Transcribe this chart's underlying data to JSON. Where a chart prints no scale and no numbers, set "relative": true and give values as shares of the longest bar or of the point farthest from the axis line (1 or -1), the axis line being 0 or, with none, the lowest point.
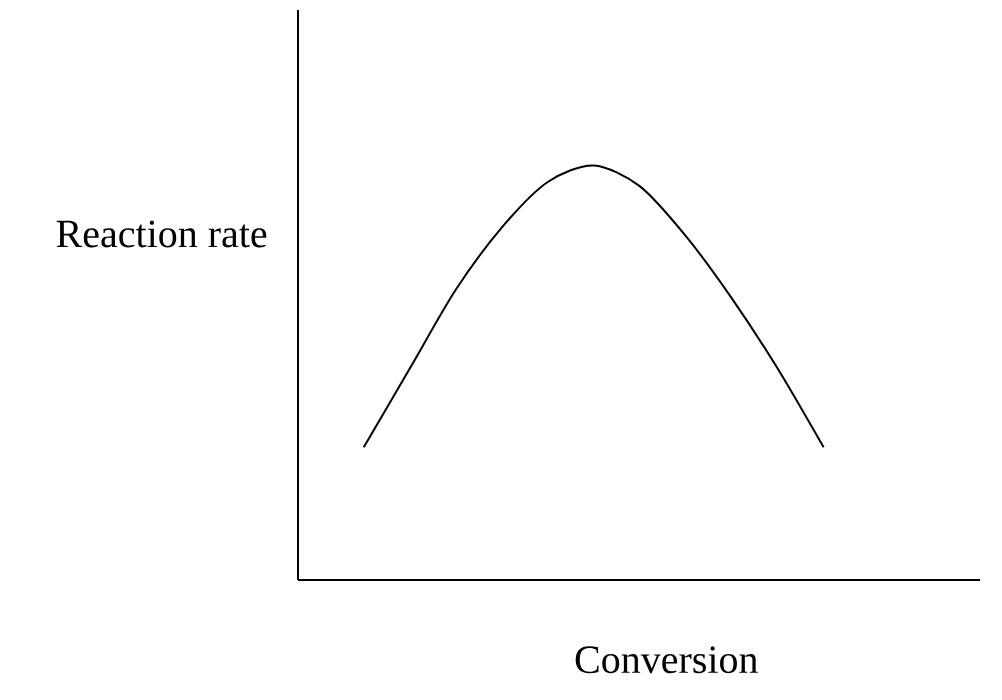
{
  "chart_data": {
    "type": "line",
    "xlabel": "Conversion",
    "ylabel": "Reaction rate",
    "relative": true,
    "categories": [
      null,
      null,
      null,
      null,
      null,
      null,
      null,
      null,
      null,
      null,
      null
    ],
    "series": [
      {
        "color": "#000000",
        "values": [
          0.32,
          0.51,
          0.7,
          0.85,
          0.96,
          1.0,
          0.95,
          0.83,
          0.68,
          0.51,
          0.32
        ]
      }
    ],
    "marker": "none",
    "line_style": "solid"
  }
}
